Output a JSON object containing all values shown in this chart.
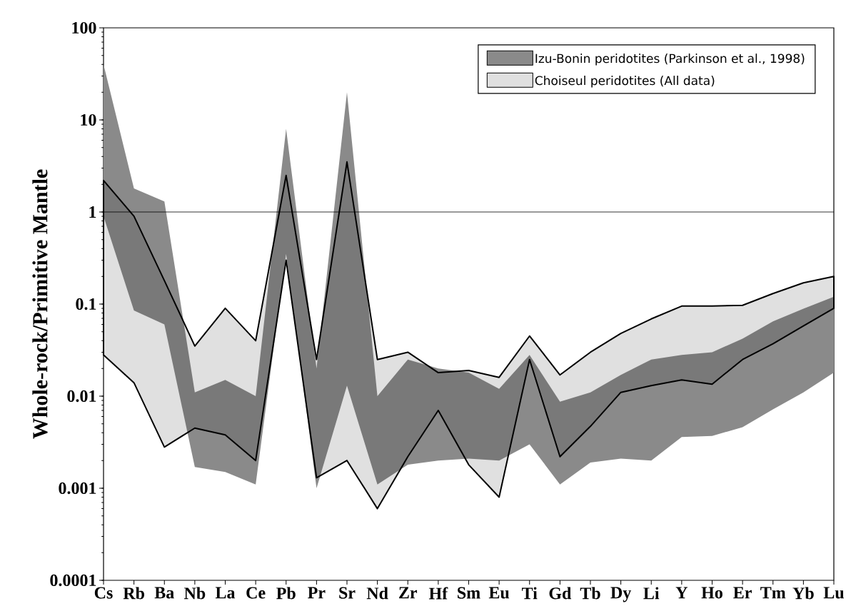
{
  "chart_data": {
    "type": "area",
    "ylabel": "Whole-rock/Primitive Mantle",
    "categories": [
      "Cs",
      "Rb",
      "Ba",
      "Nb",
      "La",
      "Ce",
      "Pb",
      "Pr",
      "Sr",
      "Nd",
      "Zr",
      "Hf",
      "Sm",
      "Eu",
      "Ti",
      "Gd",
      "Tb",
      "Dy",
      "Li",
      "Y",
      "Ho",
      "Er",
      "Tm",
      "Yb",
      "Lu"
    ],
    "series": [
      {
        "name": "Izu-Bonin peridotites (Parkinson et al., 1998)",
        "color": "#8a8a8a",
        "values": [
          null,
          null,
          null,
          null,
          null,
          null,
          null,
          null,
          null,
          null,
          null,
          null,
          null,
          null,
          null,
          null,
          null,
          null,
          null,
          null,
          null,
          null,
          null,
          null,
          null
        ],
        "upper": [
          40,
          1.8,
          1.3,
          0.011,
          0.015,
          0.01,
          8,
          0.02,
          20,
          0.01,
          0.025,
          0.02,
          0.018,
          0.012,
          0.028,
          0.0087,
          0.011,
          0.017,
          0.025,
          0.028,
          0.03,
          0.042,
          0.065,
          0.089,
          0.12
        ],
        "lower": [
          0.9,
          0.085,
          0.06,
          0.0017,
          0.0015,
          0.0011,
          0.35,
          0.001,
          0.013,
          0.0011,
          0.0018,
          0.002,
          0.0021,
          0.002,
          0.003,
          0.0011,
          0.0019,
          0.0021,
          0.002,
          0.0036,
          0.0037,
          0.0046,
          0.0072,
          0.011,
          0.018
        ]
      },
      {
        "name": "Choiseul peridotites (All data)",
        "color": "#000000",
        "values": [
          null,
          null,
          null,
          null,
          null,
          null,
          null,
          null,
          null,
          null,
          null,
          null,
          null,
          null,
          null,
          null,
          null,
          null,
          null,
          null,
          null,
          null,
          null,
          null,
          null
        ],
        "upper": [
          2.2,
          0.9,
          0.18,
          0.035,
          0.09,
          0.04,
          2.5,
          0.025,
          3.5,
          0.025,
          0.03,
          0.018,
          0.019,
          0.016,
          0.045,
          0.017,
          0.03,
          0.048,
          0.069,
          0.095,
          0.095,
          0.097,
          0.13,
          0.17,
          0.2
        ],
        "lower": [
          0.028,
          0.014,
          0.0028,
          0.0045,
          0.0038,
          0.002,
          0.3,
          0.0013,
          0.002,
          0.0006,
          0.0022,
          0.007,
          0.0018,
          0.0008,
          0.025,
          0.0022,
          0.0047,
          0.011,
          0.013,
          0.015,
          0.0135,
          0.025,
          0.037,
          0.058,
          0.09
        ]
      }
    ],
    "log": "y",
    "ylim": [
      0.0001,
      100
    ],
    "yticks": [
      0.0001,
      0.001,
      0.01,
      0.1,
      1,
      10,
      100
    ],
    "ref_lines": [
      {
        "axis": "y",
        "value": 1
      }
    ],
    "legend": "top right",
    "grid": false
  }
}
